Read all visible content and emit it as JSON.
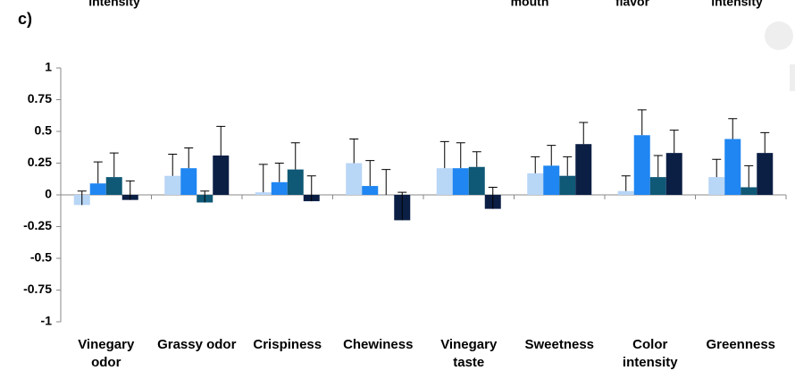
{
  "chart_data": {
    "type": "bar",
    "panel_label": "c)",
    "annotations": [
      "intensity",
      "mouth",
      "flavor",
      "intensity"
    ],
    "categories": [
      "Vinegary odor",
      "Grassy odor",
      "Crispiness",
      "Chewiness",
      "Vinegary taste",
      "Sweetness",
      "Color intensity",
      "Greenness"
    ],
    "series": [
      {
        "color": "#b8d6f6",
        "values": [
          -0.08,
          0.15,
          0.02,
          0.25,
          0.21,
          0.17,
          0.03,
          0.14
        ],
        "errors": [
          0.11,
          0.17,
          0.22,
          0.19,
          0.21,
          0.13,
          0.12,
          0.14
        ]
      },
      {
        "color": "#1f86f2",
        "values": [
          0.09,
          0.21,
          0.1,
          0.07,
          0.21,
          0.23,
          0.47,
          0.44
        ],
        "errors": [
          0.17,
          0.16,
          0.15,
          0.2,
          0.2,
          0.16,
          0.2,
          0.16
        ]
      },
      {
        "color": "#0f5876",
        "values": [
          0.14,
          -0.06,
          0.2,
          0,
          0.22,
          0.15,
          0.14,
          0.06
        ],
        "errors": [
          0.19,
          0.09,
          0.21,
          0.2,
          0.12,
          0.15,
          0.17,
          0.17
        ]
      },
      {
        "color": "#0b1f45",
        "values": [
          -0.04,
          0.31,
          -0.05,
          -0.2,
          -0.11,
          0.4,
          0.33,
          0.33
        ],
        "errors": [
          0.15,
          0.23,
          0.2,
          0.22,
          0.17,
          0.17,
          0.18,
          0.16
        ]
      }
    ],
    "ylim": [
      -1,
      1
    ],
    "yticks": [
      -1,
      -0.75,
      -0.5,
      -0.25,
      0,
      0.25,
      0.5,
      0.75,
      1
    ],
    "grid": false
  }
}
